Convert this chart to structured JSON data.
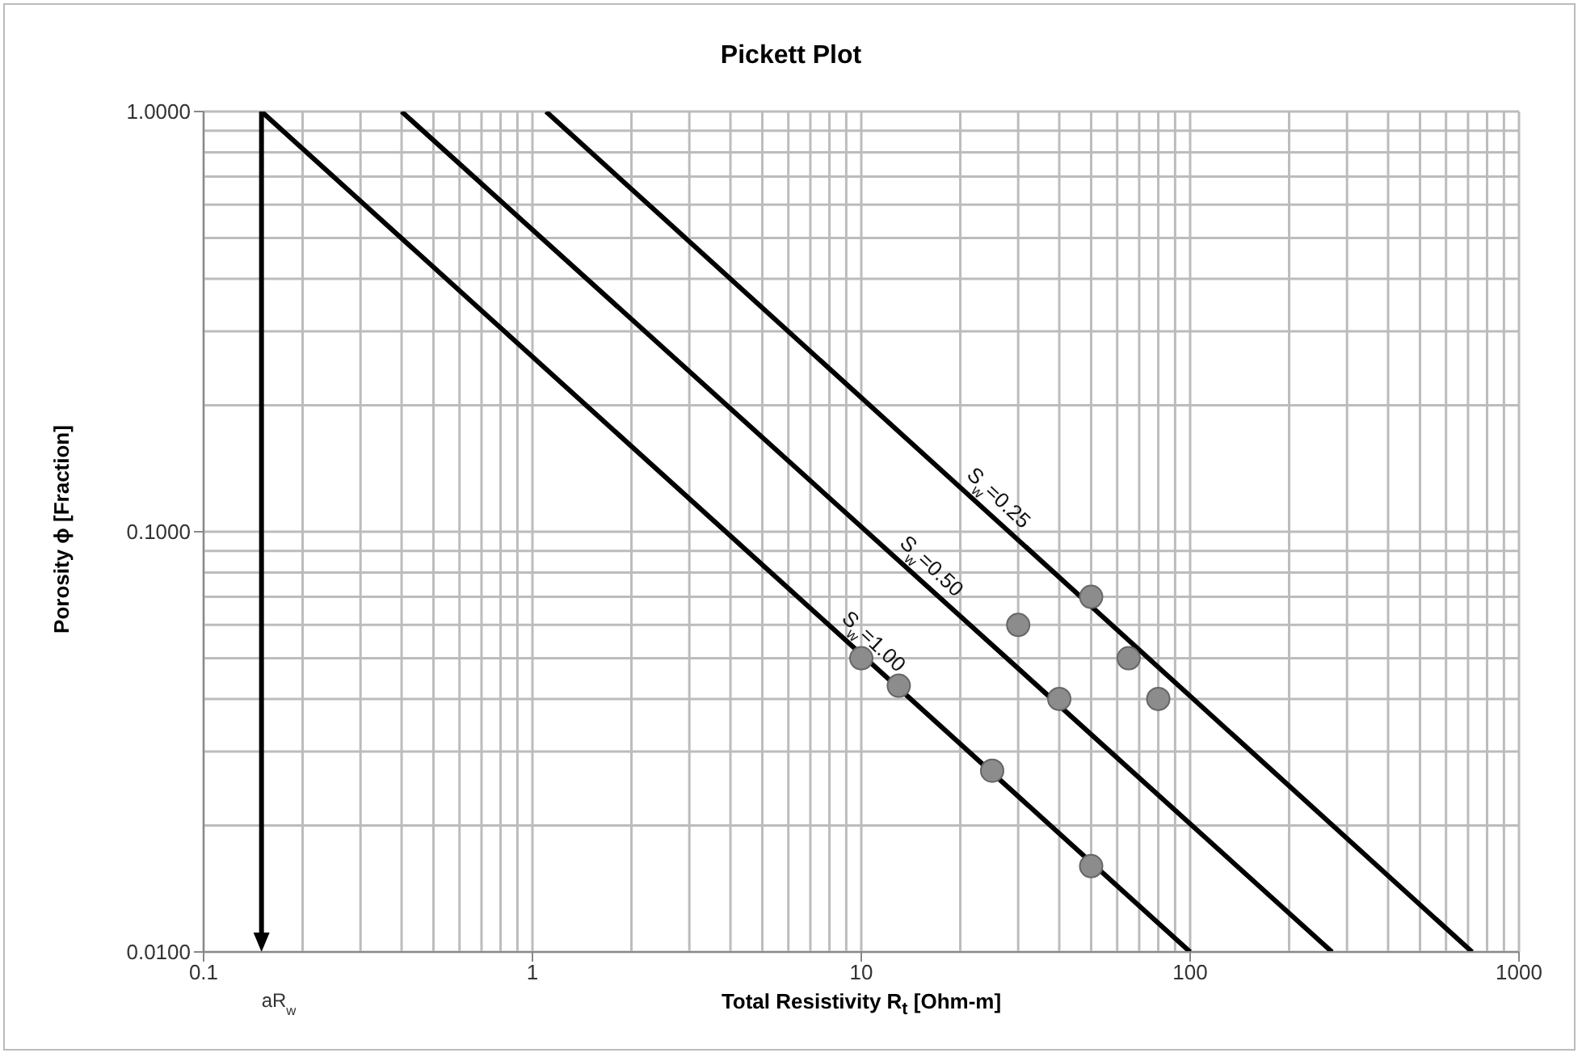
{
  "chart_data": {
    "type": "scatter",
    "title": "Pickett Plot",
    "xlabel": "Total Resistivity R$_{t}$ [Ohm-m]",
    "ylabel": "Porosity ϕ [Fraction]",
    "log": "xy",
    "grid": true,
    "xlim": [
      0.1,
      1000
    ],
    "xticks": [
      0.1,
      1,
      10,
      100,
      1000
    ],
    "ylim": [
      0.01,
      1
    ],
    "yticks": [
      {
        "value": 0.01,
        "label": "0.0100"
      },
      {
        "value": 0.1,
        "label": "0.1000"
      },
      {
        "value": 1,
        "label": "1.0000"
      }
    ],
    "series": [
      {
        "type": "line",
        "color": "#000000",
        "x": [
          0.15,
          100
        ],
        "values": [
          1,
          0.01
        ]
      },
      {
        "type": "line",
        "color": "#000000",
        "x": [
          0.4,
          270
        ],
        "values": [
          1,
          0.01
        ]
      },
      {
        "type": "line",
        "color": "#000000",
        "x": [
          1.1,
          720
        ],
        "values": [
          1,
          0.01
        ]
      },
      {
        "color": "#8c8c8c",
        "marker": "circle",
        "x": [
          10,
          13,
          25,
          50,
          30,
          40,
          50,
          65,
          80
        ],
        "values": [
          0.05,
          0.043,
          0.027,
          0.016,
          0.06,
          0.04,
          0.07,
          0.05,
          0.04
        ]
      }
    ],
    "annotations": [
      {
        "text": "S$_{w}$=1.00",
        "x": 10,
        "y": 0.051
      },
      {
        "text": "S$_{w}$=0.50",
        "x": 15,
        "y": 0.077
      },
      {
        "text": "S$_{w}$=0.25",
        "x": 24,
        "y": 0.112
      }
    ],
    "ref_lines": [
      {
        "axis": "x",
        "value": 0.15,
        "label": "aR$_{w}$",
        "color": "#000000"
      }
    ]
  }
}
